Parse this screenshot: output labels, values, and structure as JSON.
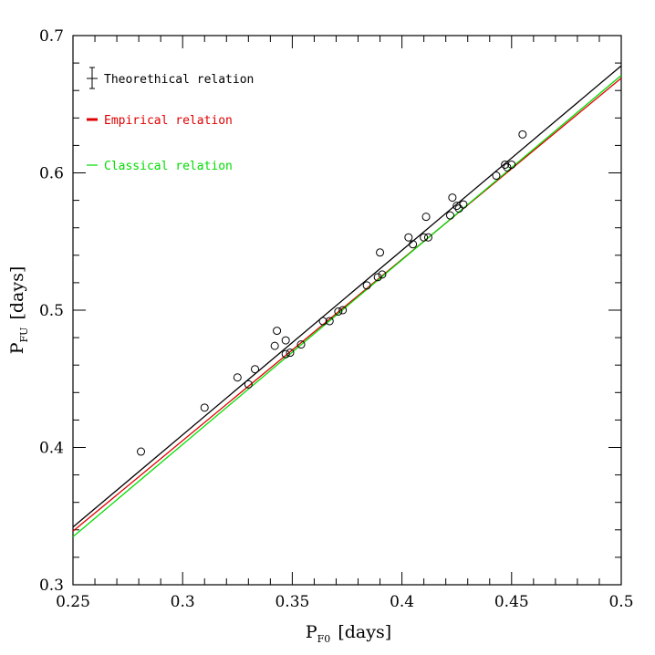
{
  "chart_data": {
    "type": "scatter",
    "x_label": {
      "main": "P",
      "sub": "F0",
      "unit": "[days]"
    },
    "y_label": {
      "main": "P",
      "sub": "FU",
      "unit": "[days]"
    },
    "xlim": [
      0.25,
      0.5
    ],
    "ylim": [
      0.3,
      0.7
    ],
    "x_ticks": [
      0.25,
      0.3,
      0.35,
      0.4,
      0.45,
      0.5
    ],
    "x_tick_labels": [
      "0.25",
      "0.3",
      "0.35",
      "0.4",
      "0.45",
      "0.5"
    ],
    "y_ticks": [
      0.3,
      0.4,
      0.5,
      0.6,
      0.7
    ],
    "y_tick_labels": [
      "0.3",
      "0.4",
      "0.5",
      "0.6",
      "0.7"
    ],
    "x_minor_step": 0.01,
    "y_minor_step": 0.02,
    "grid": false,
    "legend_position": "top-left",
    "lines": [
      {
        "name": "Theorethical relation",
        "color": "#000000",
        "x": [
          0.25,
          0.5
        ],
        "y": [
          0.342,
          0.678
        ]
      },
      {
        "name": "Empirical relation",
        "color": "#e00000",
        "x": [
          0.25,
          0.5
        ],
        "y": [
          0.339,
          0.669
        ]
      },
      {
        "name": "Classical relation",
        "color": "#00dd00",
        "x": [
          0.25,
          0.5
        ],
        "y": [
          0.335,
          0.671
        ]
      }
    ],
    "legend": [
      {
        "label": "Theorethical relation",
        "color": "#000000",
        "marker": "errorbar"
      },
      {
        "label": "Empirical relation",
        "color": "#e00000",
        "marker": "thick-dash"
      },
      {
        "label": "Classical relation",
        "color": "#00dd00",
        "marker": "line"
      }
    ],
    "points": [
      {
        "x": 0.281,
        "y": 0.397
      },
      {
        "x": 0.31,
        "y": 0.429
      },
      {
        "x": 0.325,
        "y": 0.451
      },
      {
        "x": 0.33,
        "y": 0.446
      },
      {
        "x": 0.333,
        "y": 0.457
      },
      {
        "x": 0.342,
        "y": 0.474
      },
      {
        "x": 0.343,
        "y": 0.485
      },
      {
        "x": 0.347,
        "y": 0.478
      },
      {
        "x": 0.347,
        "y": 0.468
      },
      {
        "x": 0.349,
        "y": 0.469
      },
      {
        "x": 0.354,
        "y": 0.475
      },
      {
        "x": 0.364,
        "y": 0.492
      },
      {
        "x": 0.367,
        "y": 0.492
      },
      {
        "x": 0.371,
        "y": 0.499
      },
      {
        "x": 0.373,
        "y": 0.5
      },
      {
        "x": 0.384,
        "y": 0.518
      },
      {
        "x": 0.389,
        "y": 0.524
      },
      {
        "x": 0.39,
        "y": 0.542
      },
      {
        "x": 0.391,
        "y": 0.526
      },
      {
        "x": 0.403,
        "y": 0.553
      },
      {
        "x": 0.405,
        "y": 0.548
      },
      {
        "x": 0.41,
        "y": 0.553
      },
      {
        "x": 0.411,
        "y": 0.568
      },
      {
        "x": 0.412,
        "y": 0.553
      },
      {
        "x": 0.422,
        "y": 0.569
      },
      {
        "x": 0.423,
        "y": 0.582
      },
      {
        "x": 0.425,
        "y": 0.576
      },
      {
        "x": 0.426,
        "y": 0.574
      },
      {
        "x": 0.428,
        "y": 0.577
      },
      {
        "x": 0.443,
        "y": 0.598
      },
      {
        "x": 0.447,
        "y": 0.606
      },
      {
        "x": 0.448,
        "y": 0.604
      },
      {
        "x": 0.45,
        "y": 0.606
      },
      {
        "x": 0.455,
        "y": 0.628
      }
    ]
  }
}
